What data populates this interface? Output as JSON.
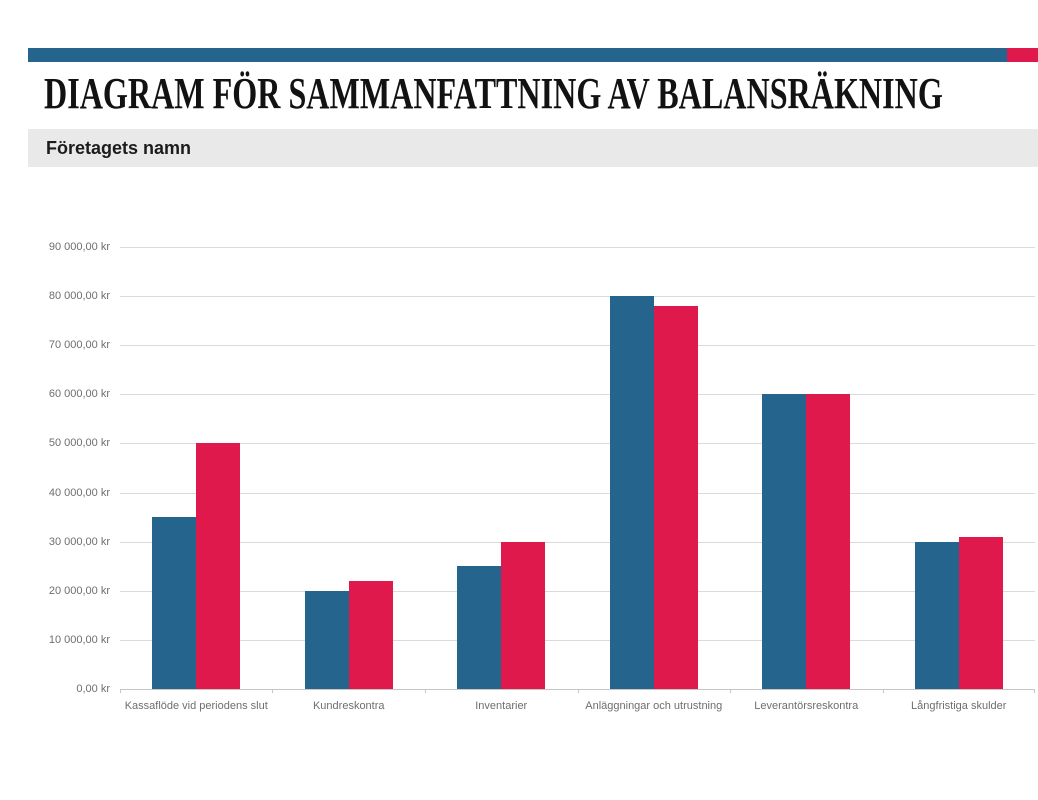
{
  "theme": {
    "blue": "#25648D",
    "red": "#E0194D"
  },
  "header": {
    "title": "DIAGRAM FÖR SAMMANFATTNING AV BALANSRÄKNING",
    "company_name": "Företagets namn"
  },
  "chart_data": {
    "type": "bar",
    "title": "",
    "xlabel": "",
    "ylabel": "",
    "grid": true,
    "legend": "none",
    "currency_suffix": "kr",
    "ylim": [
      0,
      90000
    ],
    "ytick_step": 10000,
    "ytick_labels": [
      "0,00 kr",
      "10 000,00 kr",
      "20 000,00 kr",
      "30 000,00 kr",
      "40 000,00 kr",
      "50 000,00 kr",
      "60 000,00 kr",
      "70 000,00 kr",
      "80 000,00 kr",
      "90 000,00 kr"
    ],
    "categories": [
      "Kassaflöde vid periodens slut",
      "Kundreskontra",
      "Inventarier",
      "Anläggningar och utrustning",
      "Leverantörsreskontra",
      "Långfristiga skulder"
    ],
    "series": [
      {
        "name": "",
        "color": "#25648D",
        "values": [
          35000,
          20000,
          25000,
          80000,
          60000,
          30000
        ]
      },
      {
        "name": "",
        "color": "#E0194D",
        "values": [
          50000,
          22000,
          30000,
          78000,
          60000,
          31000
        ]
      }
    ]
  }
}
